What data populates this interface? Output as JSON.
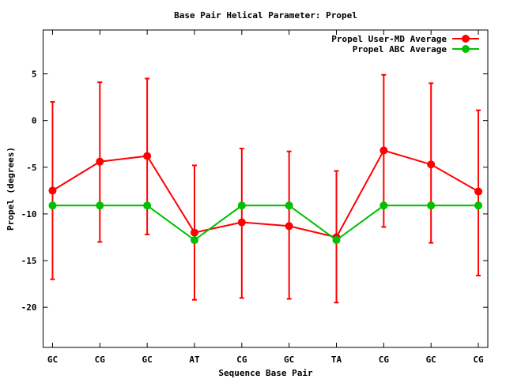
{
  "chart_data": {
    "type": "line",
    "title": "Base Pair Helical Parameter: Propel",
    "xlabel": "Sequence Base Pair",
    "ylabel": "Propel (degrees)",
    "categories": [
      "GC",
      "CG",
      "GC",
      "AT",
      "CG",
      "GC",
      "TA",
      "CG",
      "GC",
      "CG"
    ],
    "ylim": [
      -24.3,
      9.7
    ],
    "yticks": [
      5,
      0,
      -5,
      -10,
      -15,
      -20
    ],
    "grid": false,
    "legend_position": "top-right",
    "series": [
      {
        "name": "Propel User-MD Average",
        "color": "#ff0000",
        "values": [
          -7.5,
          -4.4,
          -3.8,
          -12.0,
          -10.9,
          -11.3,
          -12.5,
          -3.2,
          -4.7,
          -7.6
        ],
        "error_high": [
          2.0,
          4.1,
          4.5,
          -4.8,
          -3.0,
          -3.3,
          -5.4,
          4.9,
          4.0,
          1.1
        ],
        "error_low": [
          -17.0,
          -13.0,
          -12.2,
          -19.2,
          -19.0,
          -19.1,
          -19.5,
          -11.4,
          -13.1,
          -16.6
        ]
      },
      {
        "name": "Propel ABC Average",
        "color": "#00c000",
        "values": [
          -9.1,
          -9.1,
          -9.1,
          -12.8,
          -9.1,
          -9.1,
          -12.8,
          -9.1,
          -9.1,
          -9.1
        ]
      }
    ]
  }
}
